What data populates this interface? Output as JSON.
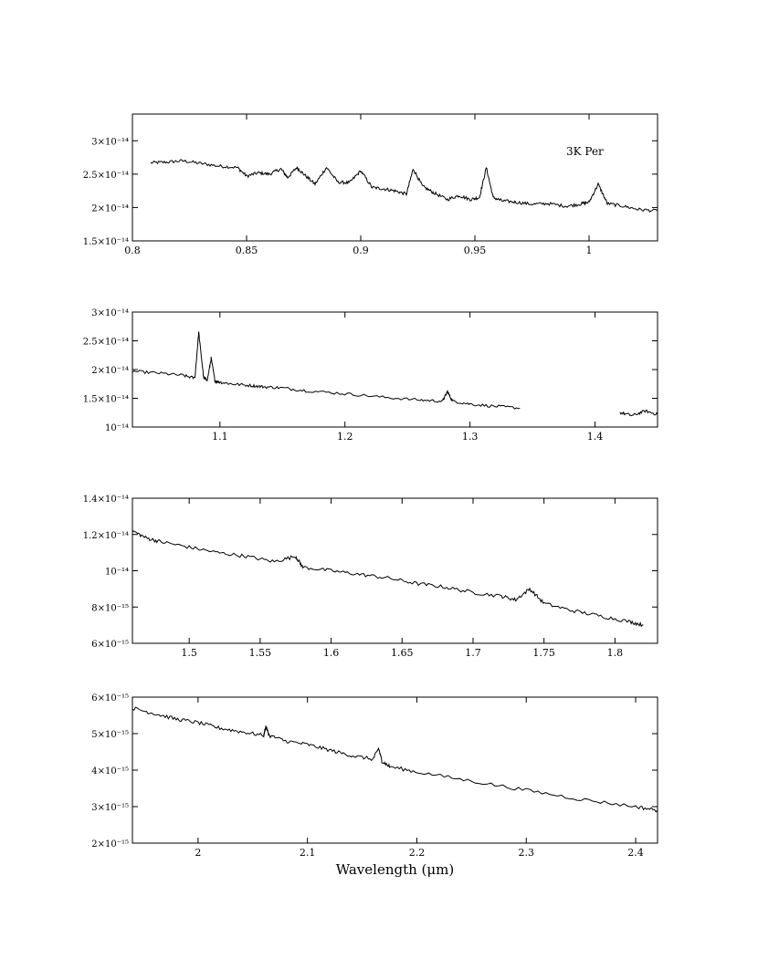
{
  "chart_data": [
    {
      "type": "line",
      "annotation": "3K Per",
      "xlim": [
        0.8,
        1.03
      ],
      "ylim": [
        1.5e-14,
        3.4e-14
      ],
      "x_ticks": [
        0.8,
        0.85,
        0.9,
        0.95,
        1
      ],
      "x_tick_labels": [
        "0.8",
        "0.85",
        "0.9",
        "0.95",
        "1"
      ],
      "y_ticks": [
        1.5e-14,
        2e-14,
        2.5e-14,
        3e-14
      ],
      "y_tick_labels": [
        "1.5×10⁻¹⁴",
        "2×10⁻¹⁴",
        "2.5×10⁻¹⁴",
        "3×10⁻¹⁴"
      ],
      "series": [
        {
          "x": [
            0.808,
            0.815,
            0.822,
            0.83,
            0.838,
            0.846,
            0.85,
            0.855,
            0.86,
            0.865,
            0.868,
            0.872,
            0.875,
            0.88,
            0.885,
            0.89,
            0.895,
            0.9,
            0.905,
            0.91,
            0.915,
            0.92,
            0.923,
            0.927,
            0.932,
            0.938,
            0.943,
            0.948,
            0.952,
            0.955,
            0.958,
            0.962,
            0.968,
            0.975,
            0.982,
            0.99,
            0.996,
            1.0,
            1.004,
            1.008,
            1.015,
            1.022,
            1.03
          ],
          "y": [
            2.67e-14,
            2.68e-14,
            2.7e-14,
            2.66e-14,
            2.62e-14,
            2.6e-14,
            2.47e-14,
            2.52e-14,
            2.5e-14,
            2.58e-14,
            2.45e-14,
            2.6e-14,
            2.5e-14,
            2.35e-14,
            2.6e-14,
            2.38e-14,
            2.37e-14,
            2.55e-14,
            2.3e-14,
            2.28e-14,
            2.25e-14,
            2.2e-14,
            2.58e-14,
            2.32e-14,
            2.22e-14,
            2.12e-14,
            2.18e-14,
            2.12e-14,
            2.15e-14,
            2.6e-14,
            2.15e-14,
            2.1e-14,
            2.08e-14,
            2.05e-14,
            2.06e-14,
            2.02e-14,
            2.05e-14,
            2.08e-14,
            2.35e-14,
            2.06e-14,
            2.02e-14,
            1.97e-14,
            1.95e-14
          ]
        }
      ]
    },
    {
      "type": "line",
      "xlim": [
        1.03,
        1.45
      ],
      "ylim": [
        1e-14,
        3e-14
      ],
      "x_ticks": [
        1.1,
        1.2,
        1.3,
        1.4
      ],
      "x_tick_labels": [
        "1.1",
        "1.2",
        "1.3",
        "1.4"
      ],
      "y_ticks": [
        1e-14,
        1.5e-14,
        2e-14,
        2.5e-14,
        3e-14
      ],
      "y_tick_labels": [
        "10⁻¹⁴",
        "1.5×10⁻¹⁴",
        "2×10⁻¹⁴",
        "2.5×10⁻¹⁴",
        "3×10⁻¹⁴"
      ],
      "series": [
        {
          "x": [
            1.03,
            1.05,
            1.07,
            1.08,
            1.083,
            1.087,
            1.09,
            1.093,
            1.096,
            1.1,
            1.11,
            1.125,
            1.135,
            1.15,
            1.17,
            1.2,
            1.23,
            1.26,
            1.278,
            1.282,
            1.286,
            1.3,
            1.32,
            1.34
          ],
          "y": [
            1.97e-14,
            1.94e-14,
            1.9e-14,
            1.85e-14,
            2.65e-14,
            1.85e-14,
            1.82e-14,
            2.2e-14,
            1.8e-14,
            1.78e-14,
            1.75e-14,
            1.72e-14,
            1.7e-14,
            1.68e-14,
            1.63e-14,
            1.58e-14,
            1.52e-14,
            1.47e-14,
            1.45e-14,
            1.62e-14,
            1.45e-14,
            1.4e-14,
            1.36e-14,
            1.33e-14
          ]
        },
        {
          "x": [
            1.42,
            1.43,
            1.44,
            1.45
          ],
          "y": [
            1.25e-14,
            1.2e-14,
            1.28e-14,
            1.22e-14
          ]
        }
      ]
    },
    {
      "type": "line",
      "xlim": [
        1.46,
        1.83
      ],
      "ylim": [
        6e-15,
        1.4e-14
      ],
      "x_ticks": [
        1.5,
        1.55,
        1.6,
        1.65,
        1.7,
        1.75,
        1.8
      ],
      "x_tick_labels": [
        "1.5",
        "1.55",
        "1.6",
        "1.65",
        "1.7",
        "1.75",
        "1.8"
      ],
      "y_ticks": [
        6e-15,
        8e-15,
        1e-14,
        1.2e-14,
        1.4e-14
      ],
      "y_tick_labels": [
        "6×10⁻¹⁵",
        "8×10⁻¹⁵",
        "10⁻¹⁴",
        "1.2×10⁻¹⁴",
        "1.4×10⁻¹⁴"
      ],
      "series": [
        {
          "x": [
            1.46,
            1.47,
            1.48,
            1.5,
            1.52,
            1.54,
            1.56,
            1.575,
            1.58,
            1.6,
            1.62,
            1.64,
            1.66,
            1.68,
            1.7,
            1.72,
            1.73,
            1.74,
            1.75,
            1.77,
            1.79,
            1.81,
            1.82
          ],
          "y": [
            1.22e-14,
            1.18e-14,
            1.16e-14,
            1.13e-14,
            1.1e-14,
            1.08e-14,
            1.05e-14,
            1.08e-14,
            1.02e-14,
            1e-14,
            9.8e-15,
            9.6e-15,
            9.3e-15,
            9.1e-15,
            8.8e-15,
            8.6e-15,
            8.4e-15,
            9e-15,
            8.2e-15,
            7.8e-15,
            7.5e-15,
            7.2e-15,
            7e-15
          ]
        }
      ]
    },
    {
      "type": "line",
      "xlim": [
        1.94,
        2.42
      ],
      "ylim": [
        2e-15,
        6e-15
      ],
      "x_ticks": [
        2,
        2.1,
        2.2,
        2.3,
        2.4
      ],
      "x_tick_labels": [
        "2",
        "2.1",
        "2.2",
        "2.3",
        "2.4"
      ],
      "y_ticks": [
        2e-15,
        3e-15,
        4e-15,
        5e-15,
        6e-15
      ],
      "y_tick_labels": [
        "2×10⁻¹⁵",
        "3×10⁻¹⁵",
        "4×10⁻¹⁵",
        "5×10⁻¹⁵",
        "6×10⁻¹⁵"
      ],
      "xlabel": "Wavelength (μm)",
      "series": [
        {
          "x": [
            1.94,
            1.96,
            1.98,
            2.0,
            2.02,
            2.04,
            2.06,
            2.062,
            2.065,
            2.08,
            2.1,
            2.12,
            2.14,
            2.16,
            2.165,
            2.168,
            2.175,
            2.2,
            2.25,
            2.3,
            2.35,
            2.4,
            2.42
          ],
          "y": [
            5.7e-15,
            5.55e-15,
            5.4e-15,
            5.3e-15,
            5.15e-15,
            5.05e-15,
            4.95e-15,
            5.2e-15,
            4.95e-15,
            4.8e-15,
            4.7e-15,
            4.55e-15,
            4.4e-15,
            4.3e-15,
            4.6e-15,
            4.25e-15,
            4.1e-15,
            3.95e-15,
            3.7e-15,
            3.45e-15,
            3.2e-15,
            3e-15,
            2.9e-15
          ]
        }
      ]
    }
  ]
}
